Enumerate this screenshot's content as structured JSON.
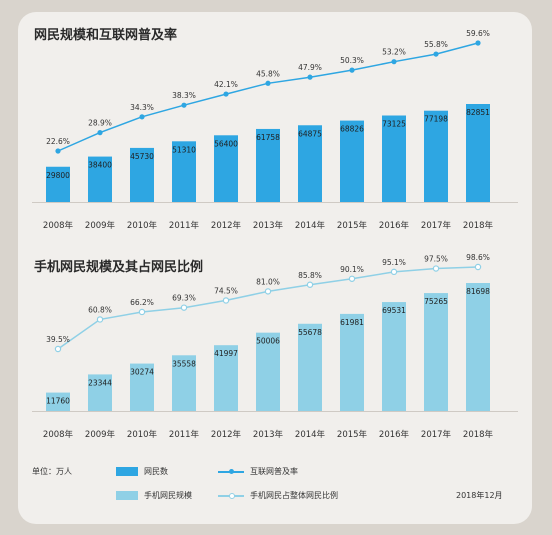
{
  "chart_data": [
    {
      "type": "bar",
      "title": "网民规模和互联网普及率",
      "categories": [
        "2008年",
        "2009年",
        "2010年",
        "2011年",
        "2012年",
        "2013年",
        "2014年",
        "2015年",
        "2016年",
        "2017年",
        "2018年"
      ],
      "series": [
        {
          "name": "网民数",
          "type": "bar",
          "values": [
            29800,
            38400,
            45730,
            51310,
            56400,
            61758,
            64875,
            68826,
            73125,
            77198,
            82851
          ],
          "color": "#2ea6e2"
        },
        {
          "name": "互联网普及率",
          "type": "line",
          "values": [
            22.6,
            28.9,
            34.3,
            38.3,
            42.1,
            45.8,
            47.9,
            50.3,
            53.2,
            55.8,
            59.6
          ],
          "unit": "%",
          "color": "#2ea6e2"
        }
      ]
    },
    {
      "type": "bar",
      "title": "手机网民规模及其占网民比例",
      "categories": [
        "2008年",
        "2009年",
        "2010年",
        "2011年",
        "2012年",
        "2013年",
        "2014年",
        "2015年",
        "2016年",
        "2017年",
        "2018年"
      ],
      "series": [
        {
          "name": "手机网民规模",
          "type": "bar",
          "values": [
            11760,
            23344,
            30274,
            35558,
            41997,
            50006,
            55678,
            61981,
            69531,
            75265,
            81698
          ],
          "color": "#8fd0e6"
        },
        {
          "name": "手机网民占整体网民比例",
          "type": "line",
          "values": [
            39.5,
            60.8,
            66.2,
            69.3,
            74.5,
            81.0,
            85.8,
            90.1,
            95.1,
            97.5,
            98.6
          ],
          "unit": "%",
          "color": "#8fd0e6"
        }
      ]
    }
  ],
  "legend": {
    "unit_label": "单位：万人",
    "items": [
      {
        "label": "网民数",
        "kind": "bar",
        "color": "#2ea6e2"
      },
      {
        "label": "互联网普及率",
        "kind": "line",
        "color": "#2ea6e2"
      },
      {
        "label": "手机网民规模",
        "kind": "bar",
        "color": "#8fd0e6"
      },
      {
        "label": "手机网民占整体网民比例",
        "kind": "line",
        "color": "#8fd0e6"
      }
    ],
    "date": "2018年12月"
  }
}
